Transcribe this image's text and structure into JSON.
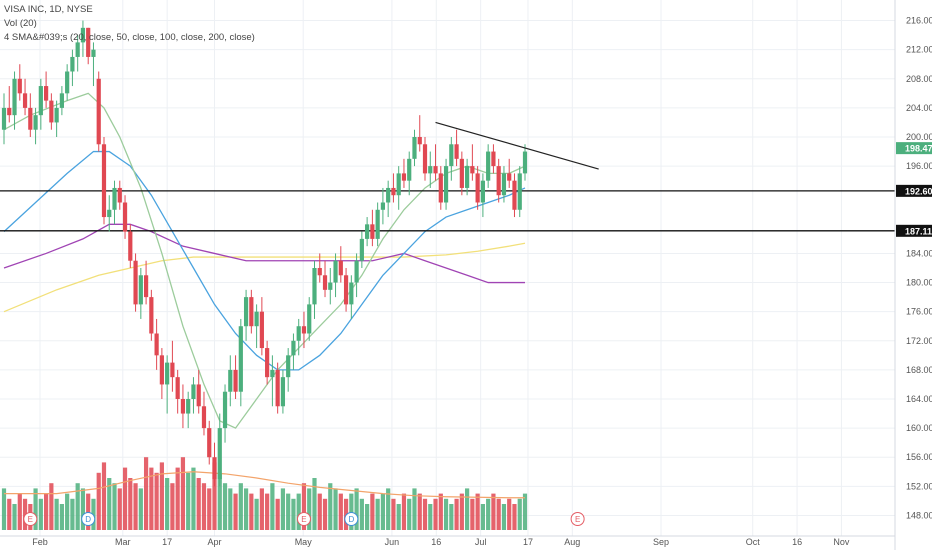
{
  "header": {
    "symbol_line": "VISA INC, 1D, NYSE",
    "vol_line": "Vol (20)",
    "sma_line": "4 SMA&#039;s (20, close, 50, close, 100, close, 200, close)"
  },
  "colors": {
    "up": "#4caf7d",
    "down": "#e04852",
    "sma20": "#9ccc9c",
    "sma50": "#4aa3df",
    "sma100": "#a044b4",
    "sma200": "#f2e07a",
    "vol_ma": "#f3a46b",
    "grid": "#edf0f4",
    "earnings": "#e45c64",
    "dividend": "#3d8fd6"
  },
  "chart_data": {
    "type": "candlestick",
    "title": "VISA INC, 1D, NYSE",
    "ylim": [
      146,
      218
    ],
    "y_scale": "linear",
    "grid": true,
    "y_ticks": [
      "216.00",
      "212.00",
      "208.00",
      "204.00",
      "200.00",
      "196.00",
      "184.00",
      "180.00",
      "176.00",
      "172.00",
      "168.00",
      "164.00",
      "160.00",
      "156.00",
      "152.00",
      "148.00"
    ],
    "x_ticks": [
      "Feb",
      "Mar",
      "17",
      "Apr",
      "May",
      "Jun",
      "16",
      "Jul",
      "17",
      "Aug",
      "Sep",
      "Oct",
      "16",
      "Nov"
    ],
    "x_tick_days": [
      3,
      31,
      46,
      62,
      92,
      122,
      137,
      152,
      168,
      183,
      213,
      244,
      259,
      274
    ],
    "last_day": 167,
    "candles": [
      [
        0,
        201,
        206,
        199,
        204
      ],
      [
        1,
        204,
        207,
        202,
        203
      ],
      [
        2,
        203,
        209,
        201,
        208
      ],
      [
        3,
        208,
        210,
        205,
        206
      ],
      [
        4,
        206,
        208,
        203,
        204
      ],
      [
        5,
        204,
        206,
        200,
        201
      ],
      [
        6,
        201,
        204,
        199,
        203
      ],
      [
        7,
        203,
        208,
        201,
        207
      ],
      [
        8,
        207,
        209,
        204,
        205
      ],
      [
        9,
        205,
        206,
        201,
        202
      ],
      [
        10,
        202,
        205,
        200,
        204
      ],
      [
        11,
        204,
        207,
        203,
        206
      ],
      [
        12,
        206,
        210,
        205,
        209
      ],
      [
        13,
        209,
        212,
        207,
        211
      ],
      [
        14,
        211,
        214,
        209,
        213
      ],
      [
        15,
        213,
        216,
        211,
        215
      ],
      [
        16,
        215,
        215,
        210,
        211
      ],
      [
        17,
        211,
        213,
        207,
        212
      ],
      [
        18,
        208,
        209,
        198,
        199
      ],
      [
        19,
        199,
        200,
        188,
        189
      ],
      [
        20,
        189,
        192,
        187,
        190
      ],
      [
        21,
        190,
        194,
        188,
        193
      ],
      [
        22,
        193,
        194,
        190,
        191
      ],
      [
        23,
        191,
        192,
        186,
        187
      ],
      [
        24,
        187,
        188,
        182,
        183
      ],
      [
        25,
        183,
        184,
        176,
        177
      ],
      [
        26,
        177,
        182,
        175,
        181
      ],
      [
        27,
        181,
        183,
        177,
        178
      ],
      [
        28,
        178,
        179,
        172,
        173
      ],
      [
        29,
        173,
        175,
        168,
        170
      ],
      [
        30,
        170,
        171,
        164,
        166
      ],
      [
        31,
        166,
        170,
        162,
        169
      ],
      [
        32,
        169,
        172,
        165,
        167
      ],
      [
        33,
        167,
        168,
        162,
        164
      ],
      [
        34,
        164,
        166,
        160,
        162
      ],
      [
        35,
        162,
        165,
        160,
        164
      ],
      [
        36,
        164,
        167,
        162,
        166
      ],
      [
        37,
        166,
        168,
        162,
        163
      ],
      [
        38,
        163,
        165,
        159,
        160
      ],
      [
        39,
        160,
        161,
        155,
        156
      ],
      [
        40,
        156,
        158,
        152,
        153
      ],
      [
        41,
        153,
        162,
        152,
        160
      ],
      [
        42,
        160,
        166,
        158,
        165
      ],
      [
        43,
        165,
        170,
        163,
        168
      ],
      [
        44,
        168,
        170,
        164,
        165
      ],
      [
        45,
        165,
        175,
        163,
        174
      ],
      [
        46,
        174,
        179,
        172,
        178
      ],
      [
        47,
        178,
        179,
        173,
        174
      ],
      [
        48,
        174,
        177,
        171,
        176
      ],
      [
        49,
        176,
        178,
        170,
        171
      ],
      [
        50,
        171,
        172,
        166,
        167
      ],
      [
        51,
        167,
        170,
        163,
        168
      ],
      [
        52,
        168,
        169,
        162,
        163
      ],
      [
        53,
        163,
        168,
        162,
        167
      ],
      [
        54,
        167,
        171,
        165,
        170
      ],
      [
        55,
        170,
        173,
        168,
        172
      ],
      [
        56,
        172,
        175,
        170,
        174
      ],
      [
        57,
        174,
        176,
        171,
        173
      ],
      [
        58,
        173,
        178,
        172,
        177
      ],
      [
        59,
        177,
        183,
        175,
        182
      ],
      [
        60,
        182,
        184,
        180,
        181
      ],
      [
        61,
        181,
        183,
        178,
        179
      ],
      [
        62,
        179,
        182,
        177,
        180
      ],
      [
        63,
        180,
        184,
        178,
        183
      ],
      [
        64,
        183,
        185,
        180,
        181
      ],
      [
        65,
        181,
        182,
        176,
        177
      ],
      [
        66,
        177,
        181,
        175,
        180
      ],
      [
        67,
        180,
        184,
        178,
        183
      ],
      [
        68,
        183,
        187,
        182,
        186
      ],
      [
        69,
        186,
        189,
        185,
        188
      ],
      [
        70,
        188,
        190,
        185,
        186
      ],
      [
        71,
        186,
        191,
        185,
        190
      ],
      [
        72,
        190,
        193,
        188,
        191
      ],
      [
        73,
        191,
        194,
        189,
        193
      ],
      [
        74,
        193,
        195,
        191,
        192
      ],
      [
        75,
        192,
        196,
        190,
        195
      ],
      [
        76,
        195,
        197,
        193,
        194
      ],
      [
        77,
        194,
        198,
        192,
        197
      ],
      [
        78,
        197,
        201,
        196,
        200
      ],
      [
        79,
        200,
        203,
        198,
        199
      ],
      [
        80,
        199,
        200,
        194,
        195
      ],
      [
        81,
        195,
        198,
        193,
        196
      ],
      [
        82,
        196,
        199,
        194,
        195
      ],
      [
        83,
        195,
        196,
        190,
        191
      ],
      [
        84,
        191,
        197,
        190,
        196
      ],
      [
        85,
        196,
        200,
        194,
        199
      ],
      [
        86,
        199,
        201,
        196,
        197
      ],
      [
        87,
        197,
        198,
        192,
        193
      ],
      [
        88,
        193,
        197,
        192,
        196
      ],
      [
        89,
        196,
        199,
        194,
        195
      ],
      [
        90,
        195,
        196,
        190,
        191
      ],
      [
        91,
        191,
        195,
        189,
        194
      ],
      [
        92,
        194,
        199,
        193,
        198
      ],
      [
        93,
        198,
        199,
        195,
        196
      ],
      [
        94,
        196,
        197,
        191,
        192
      ],
      [
        95,
        192,
        196,
        191,
        195
      ],
      [
        96,
        195,
        197,
        193,
        194
      ],
      [
        97,
        194,
        195,
        189,
        190
      ],
      [
        98,
        190,
        196,
        189,
        195
      ],
      [
        99,
        195,
        199,
        194,
        198
      ]
    ],
    "sma20": [
      [
        0,
        201
      ],
      [
        5,
        203
      ],
      [
        12,
        205
      ],
      [
        16,
        206
      ],
      [
        19,
        204
      ],
      [
        22,
        200
      ],
      [
        26,
        193
      ],
      [
        30,
        184
      ],
      [
        34,
        174
      ],
      [
        38,
        166
      ],
      [
        41,
        161
      ],
      [
        44,
        160
      ],
      [
        48,
        164
      ],
      [
        52,
        168
      ],
      [
        56,
        171
      ],
      [
        60,
        174
      ],
      [
        64,
        177
      ],
      [
        68,
        181
      ],
      [
        72,
        186
      ],
      [
        76,
        190
      ],
      [
        80,
        193
      ],
      [
        84,
        195
      ],
      [
        88,
        196
      ],
      [
        92,
        195
      ],
      [
        96,
        195
      ],
      [
        99,
        196
      ]
    ],
    "sma50": [
      [
        0,
        187
      ],
      [
        6,
        191
      ],
      [
        12,
        195
      ],
      [
        17,
        198
      ],
      [
        20,
        198
      ],
      [
        24,
        196
      ],
      [
        28,
        192
      ],
      [
        32,
        187
      ],
      [
        36,
        182
      ],
      [
        40,
        177
      ],
      [
        44,
        173
      ],
      [
        48,
        170
      ],
      [
        52,
        168
      ],
      [
        56,
        168
      ],
      [
        60,
        170
      ],
      [
        64,
        173
      ],
      [
        68,
        177
      ],
      [
        72,
        181
      ],
      [
        76,
        184
      ],
      [
        80,
        187
      ],
      [
        84,
        189
      ],
      [
        88,
        190
      ],
      [
        92,
        191
      ],
      [
        96,
        192
      ],
      [
        99,
        193
      ]
    ],
    "sma100": [
      [
        0,
        182
      ],
      [
        8,
        184
      ],
      [
        15,
        186
      ],
      [
        20,
        188
      ],
      [
        24,
        188
      ],
      [
        28,
        187
      ],
      [
        34,
        185
      ],
      [
        40,
        184
      ],
      [
        46,
        183
      ],
      [
        52,
        183
      ],
      [
        58,
        183
      ],
      [
        64,
        183
      ],
      [
        70,
        183
      ],
      [
        76,
        184
      ],
      [
        80,
        183
      ],
      [
        84,
        182
      ],
      [
        88,
        181
      ],
      [
        92,
        180
      ],
      [
        96,
        180
      ],
      [
        99,
        180
      ]
    ],
    "sma200": [
      [
        0,
        176
      ],
      [
        10,
        179
      ],
      [
        18,
        181
      ],
      [
        24,
        182
      ],
      [
        30,
        183
      ],
      [
        36,
        183.5
      ],
      [
        44,
        183.5
      ],
      [
        52,
        183.5
      ],
      [
        60,
        183.5
      ],
      [
        68,
        183.5
      ],
      [
        76,
        183.5
      ],
      [
        84,
        183.8
      ],
      [
        90,
        184.3
      ],
      [
        96,
        185
      ],
      [
        99,
        185.4
      ]
    ],
    "volume": [
      8,
      6,
      5,
      7,
      6,
      5,
      8,
      6,
      7,
      9,
      6,
      5,
      7,
      6,
      9,
      8,
      7,
      6,
      11,
      13,
      10,
      9,
      8,
      12,
      10,
      9,
      8,
      14,
      12,
      11,
      13,
      10,
      9,
      12,
      14,
      11,
      12,
      10,
      9,
      8,
      13,
      11,
      9,
      8,
      7,
      9,
      8,
      7,
      6,
      8,
      7,
      9,
      6,
      8,
      7,
      6,
      7,
      9,
      8,
      10,
      7,
      6,
      9,
      8,
      7,
      6,
      7,
      8,
      6,
      5,
      7,
      6,
      7,
      8,
      6,
      5,
      7,
      6,
      8,
      7,
      6,
      5,
      6,
      7,
      6,
      5,
      6,
      7,
      8,
      6,
      7,
      5,
      6,
      7,
      6,
      5,
      6,
      5,
      6,
      7
    ],
    "vol_ma": [
      [
        0,
        7
      ],
      [
        10,
        7
      ],
      [
        18,
        8
      ],
      [
        24,
        9.5
      ],
      [
        30,
        10.8
      ],
      [
        36,
        11.2
      ],
      [
        42,
        10.8
      ],
      [
        48,
        10
      ],
      [
        54,
        9
      ],
      [
        60,
        8.2
      ],
      [
        66,
        7.6
      ],
      [
        72,
        7
      ],
      [
        78,
        6.6
      ],
      [
        84,
        6.4
      ],
      [
        90,
        6.3
      ],
      [
        96,
        6.2
      ],
      [
        99,
        6.2
      ]
    ],
    "trendline": [
      [
        82,
        202
      ],
      [
        113,
        195.6
      ]
    ],
    "hlines": [
      192.6,
      187.11
    ],
    "price_tags": [
      {
        "label": "198.47",
        "value": 198.47,
        "kind": "last"
      },
      {
        "label": "192.60",
        "value": 192.6,
        "kind": "line"
      },
      {
        "label": "187.11",
        "value": 187.11,
        "kind": "line"
      }
    ],
    "events": [
      {
        "day": 5,
        "label": "E",
        "type": "earnings"
      },
      {
        "day": 16,
        "label": "D",
        "type": "dividend"
      },
      {
        "day": 57,
        "label": "E",
        "type": "earnings"
      },
      {
        "day": 66,
        "label": "D",
        "type": "dividend"
      },
      {
        "day": 109,
        "label": "E",
        "type": "earnings_future"
      }
    ]
  }
}
